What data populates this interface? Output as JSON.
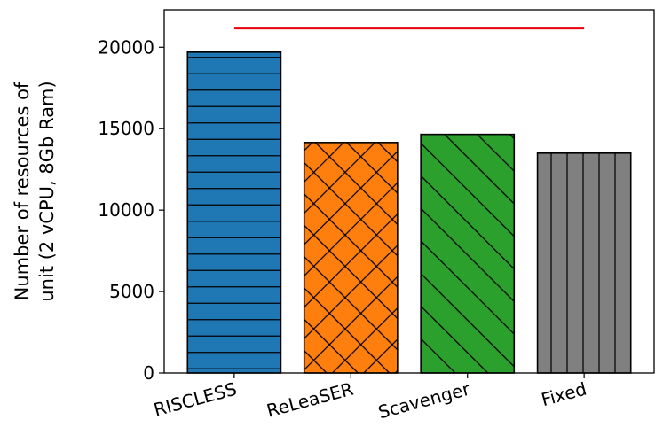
{
  "chart_data": {
    "type": "bar",
    "title": "",
    "xlabel": "",
    "ylabel_lines": [
      "Number of resources of",
      "unit (2 vCPU, 8Gb Ram)"
    ],
    "categories": [
      "RISCLESS",
      "ReLeaSER",
      "Scavenger",
      "Fixed"
    ],
    "values": [
      19700,
      14150,
      14650,
      13500
    ],
    "bar_colors": [
      "#1f77b4",
      "#ff7f0e",
      "#2ca02c",
      "#808080"
    ],
    "bar_hatches": [
      "horizontal",
      "crosshatch",
      "diagonal",
      "vertical"
    ],
    "reference_line": {
      "value": 21150,
      "color": "#e8000b",
      "from_category": 0,
      "to_category": 3
    },
    "ylim": [
      0,
      22300
    ],
    "yticks": [
      0,
      5000,
      10000,
      15000,
      20000
    ],
    "ytick_labels": [
      "0",
      "5000",
      "10000",
      "15000",
      "20000"
    ],
    "grid": false,
    "legend": "none"
  }
}
